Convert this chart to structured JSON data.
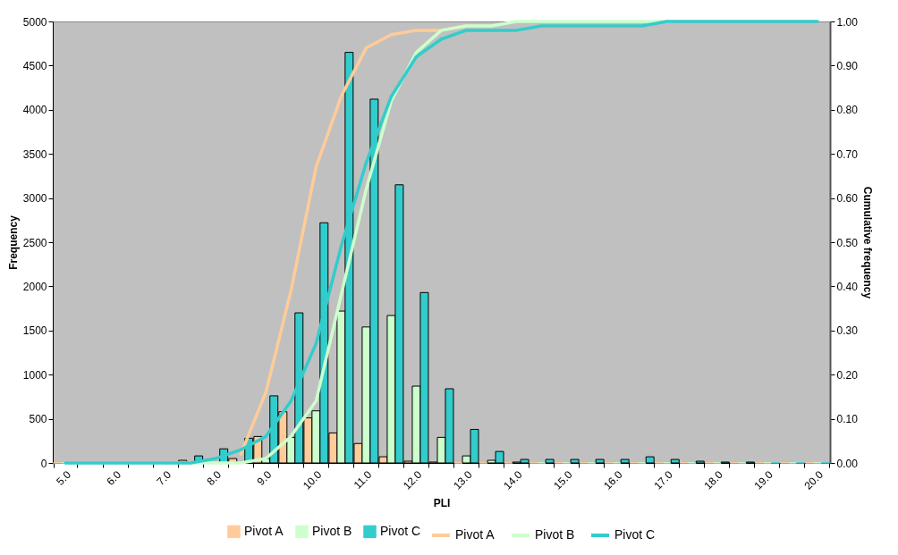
{
  "chart_data": {
    "type": "bar",
    "categories": [
      "5.0",
      null,
      "6.0",
      null,
      "7.0",
      null,
      "8.0",
      null,
      "9.0",
      null,
      "10.0",
      null,
      "11.0",
      null,
      "12.0",
      null,
      "13.0",
      null,
      "14.0",
      null,
      "15.0",
      null,
      "16.0",
      null,
      "17.0",
      null,
      "18.0",
      null,
      "19.0",
      null,
      "20.0"
    ],
    "series": [
      {
        "name": "Pivot A",
        "color": "#ffcc99",
        "values": [
          0,
          0,
          0,
          0,
          0,
          30,
          null,
          50,
          300,
          580,
          510,
          340,
          220,
          70,
          20,
          10,
          0,
          0,
          0,
          0,
          0,
          0,
          0,
          0,
          0,
          0,
          0,
          0,
          0,
          0,
          0
        ]
      },
      {
        "name": "Pivot B",
        "color": "#ccffcc",
        "values": [
          0,
          0,
          0,
          0,
          0,
          0,
          0,
          null,
          50,
          290,
          590,
          1720,
          1540,
          1670,
          870,
          290,
          80,
          30,
          10,
          0,
          0,
          0,
          0,
          0,
          0,
          0,
          0,
          0,
          0,
          0,
          0
        ]
      },
      {
        "name": "Pivot C",
        "color": "#33cccc",
        "values": [
          0,
          0,
          0,
          0,
          0,
          80,
          160,
          280,
          760,
          1700,
          2720,
          4650,
          4120,
          3150,
          1930,
          840,
          380,
          130,
          40,
          40,
          40,
          40,
          40,
          70,
          40,
          20,
          10,
          10,
          0,
          0,
          0
        ]
      },
      {
        "name": "Pivot A",
        "type": "line",
        "axis": "y2",
        "color": "#ffcc99",
        "values": [
          null,
          null,
          null,
          null,
          null,
          null,
          null,
          0.02,
          0.16,
          0.39,
          0.67,
          0.83,
          0.94,
          0.97,
          0.98,
          0.98,
          0.99,
          null,
          null,
          null,
          null,
          null,
          null,
          null,
          null,
          null,
          null,
          null,
          null,
          null,
          null
        ]
      },
      {
        "name": "Pivot B",
        "type": "line",
        "axis": "y2",
        "color": "#ccffcc",
        "values": [
          0,
          0,
          0,
          0,
          0,
          0,
          0,
          0,
          0.01,
          0.06,
          0.14,
          0.38,
          0.62,
          0.82,
          0.93,
          0.98,
          0.99,
          0.99,
          1,
          1,
          1,
          1,
          1,
          1,
          1,
          null,
          null,
          null,
          null,
          null,
          null
        ]
      },
      {
        "name": "Pivot C",
        "type": "line",
        "axis": "y2",
        "color": "#33cccc",
        "values": [
          0,
          0,
          0,
          0,
          0,
          0,
          0.01,
          0.03,
          0.06,
          0.14,
          0.27,
          0.49,
          0.68,
          0.83,
          0.92,
          0.96,
          0.98,
          0.98,
          0.98,
          0.99,
          0.99,
          0.99,
          0.99,
          0.99,
          1,
          1,
          1,
          1,
          1,
          1,
          1
        ]
      }
    ],
    "xlabel": "PLI",
    "ylabel": "Frequency",
    "y2label": "Cumulative frequency",
    "ylim": [
      0,
      5000
    ],
    "yticks": [
      0,
      500,
      1000,
      1500,
      2000,
      2500,
      3000,
      3500,
      4000,
      4500,
      5000
    ],
    "y2lim": [
      0,
      1
    ],
    "y2ticks": [
      {
        "value": 0,
        "label": "0.00"
      },
      {
        "value": 0.1,
        "label": "0.10"
      },
      {
        "value": 0.2,
        "label": "0.20"
      },
      {
        "value": 0.3,
        "label": "0.30"
      },
      {
        "value": 0.4,
        "label": "0.40"
      },
      {
        "value": 0.5,
        "label": "0.50"
      },
      {
        "value": 0.6,
        "label": "0.60"
      },
      {
        "value": 0.7,
        "label": "0.70"
      },
      {
        "value": 0.8,
        "label": "0.80"
      },
      {
        "value": 0.9,
        "label": "0.90"
      },
      {
        "value": 1,
        "label": "1.00"
      }
    ],
    "legend": "bottom"
  }
}
